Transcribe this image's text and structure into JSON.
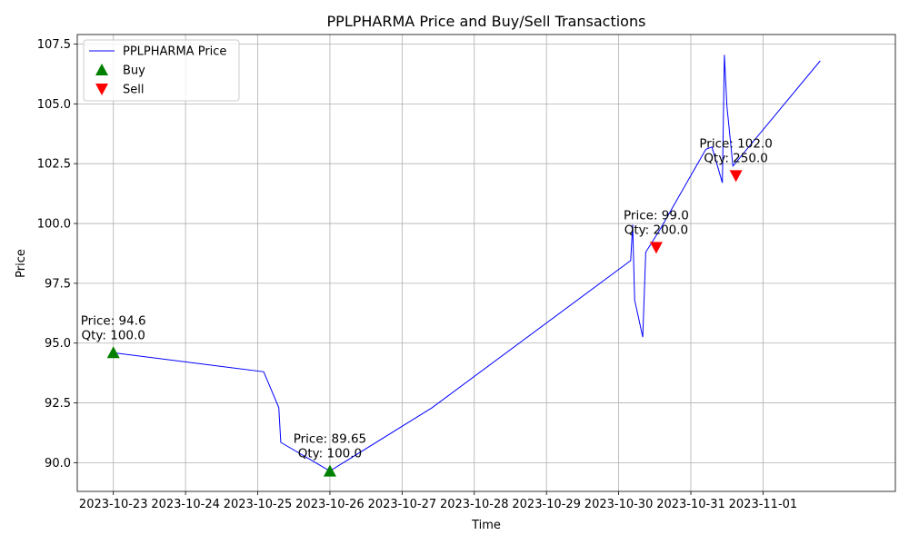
{
  "chart_data": {
    "type": "line",
    "title": "PPLPHARMA Price and Buy/Sell Transactions",
    "xlabel": "Time",
    "ylabel": "Price",
    "xlim": [
      "2023-10-22T12:00",
      "2023-11-02T20:00"
    ],
    "ylim": [
      88.8,
      107.9
    ],
    "x_ticks": [
      "2023-10-23",
      "2023-10-24",
      "2023-10-25",
      "2023-10-26",
      "2023-10-27",
      "2023-10-28",
      "2023-10-29",
      "2023-10-30",
      "2023-10-31",
      "2023-11-01"
    ],
    "y_ticks": [
      "90.0",
      "92.5",
      "95.0",
      "97.5",
      "100.0",
      "102.5",
      "105.0",
      "107.5"
    ],
    "y_tick_values": [
      90.0,
      92.5,
      95.0,
      97.5,
      100.0,
      102.5,
      105.0,
      107.5
    ],
    "grid": true,
    "legend_position": "top-left",
    "series": [
      {
        "name": "PPLPHARMA Price",
        "color": "#0000ff",
        "points": [
          [
            "2023-10-23T00:00",
            94.6
          ],
          [
            "2023-10-25T02:00",
            93.8
          ],
          [
            "2023-10-25T07:00",
            92.3
          ],
          [
            "2023-10-25T07:40",
            90.85
          ],
          [
            "2023-10-26T00:00",
            89.65
          ],
          [
            "2023-10-27T10:00",
            92.3
          ],
          [
            "2023-10-30T04:00",
            98.45
          ],
          [
            "2023-10-30T04:40",
            99.95
          ],
          [
            "2023-10-30T05:20",
            96.8
          ],
          [
            "2023-10-30T08:00",
            95.25
          ],
          [
            "2023-10-30T09:00",
            98.8
          ],
          [
            "2023-10-30T14:00",
            99.8
          ],
          [
            "2023-10-31T05:00",
            103.1
          ],
          [
            "2023-10-31T07:00",
            103.2
          ],
          [
            "2023-10-31T10:30",
            101.7
          ],
          [
            "2023-10-31T11:10",
            107.05
          ],
          [
            "2023-10-31T12:00",
            104.9
          ],
          [
            "2023-10-31T14:00",
            102.4
          ],
          [
            "2023-11-01T19:00",
            106.8
          ]
        ]
      }
    ],
    "markers": [
      {
        "type": "Buy",
        "time": "2023-10-23T00:00",
        "price": 94.6,
        "label1": "Price: 94.6",
        "label2": "Qty: 100.0"
      },
      {
        "type": "Buy",
        "time": "2023-10-26T00:00",
        "price": 89.65,
        "label1": "Price: 89.65",
        "label2": "Qty: 100.0"
      },
      {
        "type": "Sell",
        "time": "2023-10-30T12:30",
        "price": 99.0,
        "label1": "Price: 99.0",
        "label2": "Qty: 200.0"
      },
      {
        "type": "Sell",
        "time": "2023-10-31T15:00",
        "price": 102.0,
        "label1": "Price: 102.0",
        "label2": "Qty: 250.0"
      }
    ],
    "legend": [
      {
        "label": "PPLPHARMA Price",
        "kind": "line",
        "color": "#0000ff"
      },
      {
        "label": "Buy",
        "kind": "up-triangle",
        "color": "#008000"
      },
      {
        "label": "Sell",
        "kind": "down-triangle",
        "color": "#ff0000"
      }
    ]
  }
}
